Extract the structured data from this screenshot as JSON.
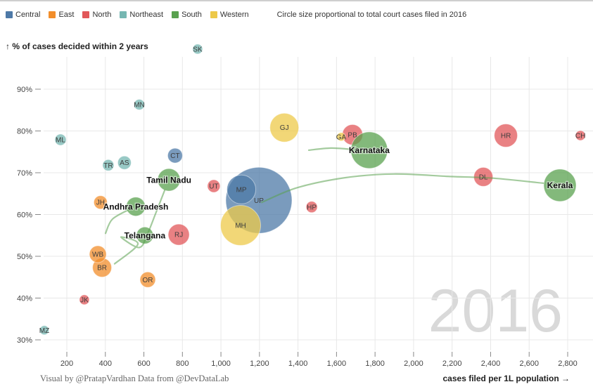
{
  "legend": {
    "items": [
      {
        "label": "Central",
        "color": "#4e79a7"
      },
      {
        "label": "East",
        "color": "#f28e2b"
      },
      {
        "label": "North",
        "color": "#e15759"
      },
      {
        "label": "Northeast",
        "color": "#76b7b2"
      },
      {
        "label": "South",
        "color": "#59a14f"
      },
      {
        "label": "Western",
        "color": "#edc949"
      }
    ],
    "note": "Circle size proportional to total court cases filed in 2016"
  },
  "watermark": "2016",
  "footer": {
    "credit": "Visual by @PratapVardhan Data from @DevDataLab"
  },
  "chart_data": {
    "type": "scatter",
    "title": "",
    "xlabel": "cases filed per 1L population →",
    "ylabel": "↑ % of cases decided within 2 years",
    "xlim": [
      200,
      2800
    ],
    "ylim": [
      30,
      90
    ],
    "grid": true,
    "x_ticks": [
      200,
      400,
      600,
      800,
      1000,
      1200,
      1400,
      1600,
      1800,
      2000,
      2200,
      2400,
      2600,
      2800
    ],
    "x_tick_labels": [
      "200",
      "400",
      "600",
      "800",
      "1,000",
      "1,200",
      "1,400",
      "1,600",
      "1,800",
      "2,000",
      "2,200",
      "2,400",
      "2,600",
      "2,800"
    ],
    "y_ticks": [
      90,
      80,
      70,
      60,
      50,
      40,
      30
    ],
    "y_tick_labels": [
      "90%",
      "80%",
      "70%",
      "60%",
      "50%",
      "40%",
      "30%"
    ],
    "bubble_opacity": 0.75,
    "trail_color": "#59a14f",
    "watermark_color": "#d9d9d9",
    "points": [
      {
        "code": "UP",
        "region": "Central",
        "x": 1197,
        "y": 63.4,
        "r": 47
      },
      {
        "code": "MH",
        "region": "Western",
        "x": 1102,
        "y": 57.4,
        "r": 28.5
      },
      {
        "code": "KL",
        "name": "Kerala",
        "region": "South",
        "x": 2760,
        "y": 67.0,
        "r": 23
      },
      {
        "code": "MP",
        "region": "Central",
        "x": 1106,
        "y": 66.0,
        "r": 20.5
      },
      {
        "code": "GJ",
        "region": "Western",
        "x": 1329,
        "y": 80.8,
        "r": 20.5
      },
      {
        "code": "HR",
        "region": "North",
        "x": 2479,
        "y": 78.9,
        "r": 16.5
      },
      {
        "code": "TN",
        "name": "Tamil Nadu",
        "region": "South",
        "x": 730,
        "y": 68.3,
        "r": 16
      },
      {
        "code": "RJ",
        "region": "North",
        "x": 781,
        "y": 55.2,
        "r": 15
      },
      {
        "code": "PB",
        "region": "North",
        "x": 1683,
        "y": 79.1,
        "r": 14.5
      },
      {
        "code": "KA",
        "name": "Karnataka",
        "region": "South",
        "x": 1770,
        "y": 75.4,
        "r": 26
      },
      {
        "code": "AP",
        "name": "Andhra Pradesh",
        "region": "South",
        "x": 558,
        "y": 61.9,
        "r": 13.5
      },
      {
        "code": "DL",
        "region": "North",
        "x": 2362,
        "y": 69.0,
        "r": 13.5
      },
      {
        "code": "BR",
        "region": "East",
        "x": 383,
        "y": 47.3,
        "r": 13.5
      },
      {
        "code": "TG",
        "name": "Telangana",
        "region": "South",
        "x": 605,
        "y": 55.0,
        "r": 12
      },
      {
        "code": "WB",
        "region": "East",
        "x": 361,
        "y": 50.5,
        "r": 12
      },
      {
        "code": "OR",
        "region": "East",
        "x": 620,
        "y": 44.4,
        "r": 11
      },
      {
        "code": "CT",
        "region": "Central",
        "x": 762,
        "y": 74.1,
        "r": 10.5
      },
      {
        "code": "JH",
        "region": "East",
        "x": 375,
        "y": 62.9,
        "r": 9.5
      },
      {
        "code": "AS",
        "region": "Northeast",
        "x": 499,
        "y": 72.4,
        "r": 9.5
      },
      {
        "code": "UT",
        "region": "North",
        "x": 963,
        "y": 66.8,
        "r": 9
      },
      {
        "code": "HP",
        "region": "North",
        "x": 1471,
        "y": 61.8,
        "r": 8
      },
      {
        "code": "ML",
        "region": "Northeast",
        "x": 167,
        "y": 77.9,
        "r": 8
      },
      {
        "code": "TR",
        "region": "Northeast",
        "x": 415,
        "y": 71.8,
        "r": 8
      },
      {
        "code": "MN",
        "region": "Northeast",
        "x": 576,
        "y": 86.3,
        "r": 7.5
      },
      {
        "code": "SK",
        "region": "Northeast",
        "x": 879,
        "y": 99.6,
        "r": 7
      },
      {
        "code": "CH",
        "region": "North",
        "x": 2866,
        "y": 78.9,
        "r": 7
      },
      {
        "code": "JK",
        "region": "North",
        "x": 291,
        "y": 39.6,
        "r": 7
      },
      {
        "code": "MZ",
        "region": "Northeast",
        "x": 83,
        "y": 32.3,
        "r": 6.5
      },
      {
        "code": "GA",
        "region": "Western",
        "x": 1624,
        "y": 78.6,
        "r": 6
      }
    ],
    "trails": [
      {
        "name": "telangana-trail",
        "points": [
          [
            448,
            48.2
          ],
          [
            569,
            52.9
          ],
          [
            481,
            54.6
          ],
          [
            576,
            52.1
          ],
          [
            620,
            55.5
          ],
          [
            664,
            60.6
          ],
          [
            708,
            65.8
          ]
        ]
      },
      {
        "name": "andhra-pradesh-trail",
        "points": [
          [
            401,
            55.5
          ],
          [
            437,
            58.9
          ],
          [
            532,
            61.4
          ]
        ]
      },
      {
        "name": "karnataka-trail",
        "points": [
          [
            1456,
            75.4
          ],
          [
            1570,
            75.9
          ],
          [
            1676,
            75.6
          ]
        ]
      },
      {
        "name": "kerala-trail",
        "points": [
          [
            1212,
            62.9
          ],
          [
            1394,
            66.4
          ],
          [
            1643,
            68.8
          ],
          [
            1898,
            69.7
          ],
          [
            2190,
            69.1
          ],
          [
            2410,
            68.7
          ],
          [
            2673,
            67.5
          ]
        ]
      }
    ]
  }
}
